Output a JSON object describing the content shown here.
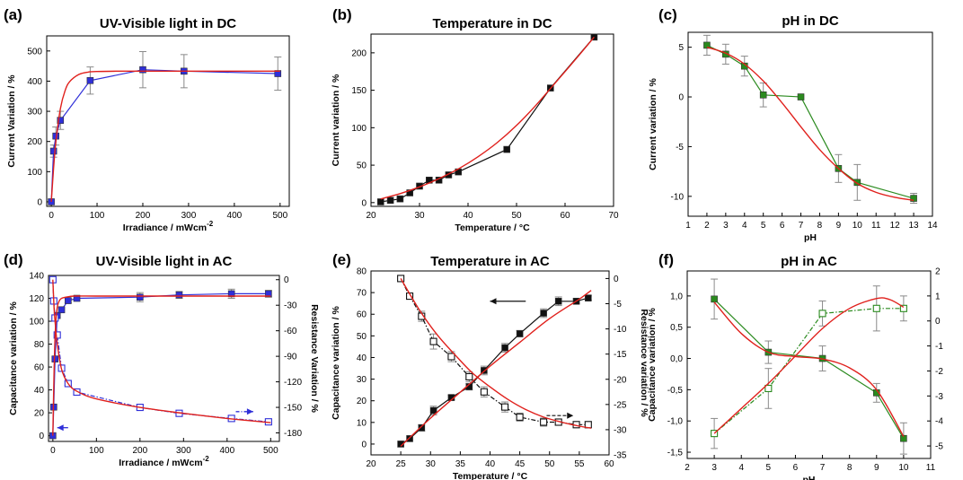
{
  "figure": {
    "colors": {
      "fit": "#e0201c",
      "blue": "#2f2fd8",
      "black": "#111111",
      "green": "#2a8a1e",
      "err": "#8a8a8a"
    }
  },
  "chart_data": [
    {
      "id": "a",
      "letter": "(a)",
      "type": "line",
      "title": "UV-Visible light in DC",
      "xlabel": "Irradiance / mWcm",
      "xlabel_sup": "-2",
      "ylabel": "Current Variation / %",
      "xlim": [
        -10,
        520
      ],
      "ylim": [
        -15,
        550
      ],
      "xticks": [
        0,
        100,
        200,
        300,
        400,
        500
      ],
      "yticks": [
        0,
        100,
        200,
        300,
        400,
        500
      ],
      "series": [
        {
          "color": "blue",
          "marker": "square-filled",
          "mode": "polyline",
          "x": [
            0,
            5,
            10,
            20,
            85,
            200,
            290,
            495
          ],
          "y": [
            0,
            168,
            218,
            270,
            402,
            438,
            433,
            425
          ],
          "err": [
            0,
            20,
            30,
            30,
            45,
            60,
            55,
            55
          ]
        },
        {
          "color": "fit",
          "mode": "curve",
          "x": [
            0,
            5,
            10,
            20,
            30,
            40,
            60,
            80,
            100,
            150,
            200,
            300,
            500
          ],
          "y": [
            0,
            110,
            200,
            310,
            368,
            398,
            422,
            430,
            432,
            433,
            433,
            433,
            433
          ]
        }
      ]
    },
    {
      "id": "b",
      "letter": "(b)",
      "type": "line",
      "title": "Temperature in DC",
      "xlabel": "Temperature / °C",
      "ylabel": "Current variation / %",
      "xlim": [
        20,
        70
      ],
      "ylim": [
        -5,
        225
      ],
      "xticks": [
        20,
        30,
        40,
        50,
        60,
        70
      ],
      "yticks": [
        0,
        50,
        100,
        150,
        200
      ],
      "series": [
        {
          "color": "black",
          "marker": "square-filled",
          "mode": "polyline",
          "x": [
            22,
            24,
            26,
            28,
            30,
            32,
            34,
            36,
            38,
            48,
            57,
            66
          ],
          "y": [
            1,
            3,
            5,
            13,
            22,
            30,
            30,
            37,
            41,
            71,
            153,
            221
          ],
          "err": [
            0,
            0,
            0,
            0,
            0,
            0,
            0,
            0,
            0,
            0,
            0,
            0
          ]
        },
        {
          "color": "fit",
          "mode": "curve",
          "x": [
            22,
            26,
            30,
            34,
            38,
            42,
            46,
            50,
            54,
            58,
            62,
            66
          ],
          "y": [
            5,
            12,
            21,
            32,
            45,
            61,
            80,
            103,
            130,
            160,
            190,
            221
          ]
        }
      ]
    },
    {
      "id": "c",
      "letter": "(c)",
      "type": "line",
      "title": "pH in DC",
      "xlabel": "pH",
      "ylabel": "Current variation / %",
      "xlim": [
        1,
        14
      ],
      "ylim": [
        -12,
        6.5
      ],
      "xticks": [
        1,
        2,
        3,
        4,
        5,
        6,
        7,
        8,
        9,
        10,
        11,
        12,
        13,
        14
      ],
      "yticks": [
        -10,
        -5,
        0,
        5
      ],
      "series": [
        {
          "color": "green",
          "marker": "square-filled",
          "mode": "polyline",
          "x": [
            2,
            3,
            4,
            5,
            7,
            9,
            10,
            13
          ],
          "y": [
            5.2,
            4.3,
            3.1,
            0.2,
            0.0,
            -7.2,
            -8.6,
            -10.2
          ],
          "err": [
            1.0,
            1.0,
            1.0,
            1.2,
            0,
            1.4,
            1.8,
            0.5
          ]
        },
        {
          "color": "fit",
          "mode": "curve",
          "x": [
            2,
            3,
            4,
            5,
            6,
            7,
            8,
            9,
            10,
            11,
            12,
            13
          ],
          "y": [
            5.0,
            4.4,
            3.3,
            1.6,
            -0.6,
            -3.0,
            -5.3,
            -7.2,
            -8.7,
            -9.6,
            -10.1,
            -10.4
          ]
        }
      ]
    },
    {
      "id": "d",
      "letter": "(d)",
      "type": "line",
      "title": "UV-Visible light in AC",
      "xlabel": "Irradiance / mWcm",
      "xlabel_sup": "-2",
      "ylabel": "Capacitance variation / %",
      "y2label": "Resistance Variation / %",
      "xlim": [
        -10,
        520
      ],
      "ylim": [
        -5,
        140
      ],
      "y2lim": [
        -190,
        5
      ],
      "xticks": [
        0,
        100,
        200,
        300,
        400,
        500
      ],
      "yticks": [
        0,
        20,
        40,
        60,
        80,
        100,
        120,
        140
      ],
      "y2ticks": [
        0,
        -30,
        -60,
        -90,
        -120,
        -150,
        -180
      ],
      "series": [
        {
          "color": "blue",
          "marker": "square-filled",
          "mode": "polyline",
          "axis": "left",
          "x": [
            0,
            2,
            5,
            10,
            20,
            35,
            55,
            200,
            290,
            410,
            495
          ],
          "y": [
            0,
            25,
            67,
            105,
            110,
            118,
            120,
            121,
            123,
            124,
            124
          ],
          "err": [
            0,
            0,
            0,
            0,
            0,
            2,
            2,
            4,
            3,
            4,
            3
          ]
        },
        {
          "color": "blue",
          "marker": "square-open",
          "mode": "dashdot",
          "axis": "right",
          "x": [
            0,
            2,
            5,
            10,
            20,
            35,
            55,
            200,
            290,
            410,
            495
          ],
          "y": [
            0,
            -25,
            -45,
            -65,
            -104,
            -122,
            -132,
            -150,
            -157,
            -163,
            -167
          ],
          "err": [
            0,
            0,
            0,
            0,
            0,
            2,
            2,
            3,
            2,
            3,
            2
          ]
        },
        {
          "color": "fit",
          "mode": "curve",
          "axis": "left",
          "x": [
            0,
            3,
            6,
            10,
            15,
            20,
            30,
            50,
            100,
            200,
            300,
            500
          ],
          "y": [
            0,
            60,
            95,
            112,
            118,
            120,
            121,
            122,
            122,
            122,
            122,
            122
          ]
        },
        {
          "color": "fit",
          "mode": "curve",
          "axis": "right",
          "x": [
            0,
            3,
            6,
            10,
            20,
            35,
            55,
            100,
            200,
            300,
            400,
            500
          ],
          "y": [
            0,
            -35,
            -55,
            -75,
            -105,
            -122,
            -131,
            -140,
            -150,
            -157,
            -163,
            -168
          ]
        }
      ]
    },
    {
      "id": "e",
      "letter": "(e)",
      "type": "line",
      "title": "Temperature in AC",
      "xlabel": "Temperature / °C",
      "ylabel": "Capacitance variation / %",
      "y2label": "Resistance variation / %",
      "xlim": [
        20,
        60
      ],
      "ylim": [
        -5,
        80
      ],
      "y2lim": [
        -35,
        1.5
      ],
      "xticks": [
        20,
        25,
        30,
        35,
        40,
        45,
        50,
        55,
        60
      ],
      "yticks": [
        0,
        10,
        20,
        30,
        40,
        50,
        60,
        70,
        80
      ],
      "y2ticks": [
        0,
        -5,
        -10,
        -15,
        -20,
        -25,
        -30,
        -35
      ],
      "series": [
        {
          "color": "black",
          "marker": "square-filled",
          "mode": "polyline",
          "axis": "left",
          "x": [
            25,
            26.5,
            28.5,
            30.5,
            33.5,
            36.5,
            39,
            42.5,
            45,
            49,
            51.5,
            54.5,
            56.5
          ],
          "y": [
            0,
            2.5,
            7.5,
            15.5,
            21.5,
            26.5,
            34,
            44.5,
            51,
            60.5,
            66,
            66,
            67.5
          ],
          "err": [
            0,
            0,
            1.5,
            2,
            1,
            1.5,
            2,
            2,
            1.5,
            2,
            2,
            1,
            1
          ]
        },
        {
          "color": "black",
          "marker": "square-open",
          "mode": "dashdot",
          "axis": "right",
          "x": [
            25,
            26.5,
            28.5,
            30.5,
            33.5,
            36.5,
            39,
            42.5,
            45,
            49,
            51.5,
            54.5,
            56.5
          ],
          "y": [
            0,
            -3.5,
            -7.5,
            -12.5,
            -15.5,
            -19.5,
            -22.5,
            -25.5,
            -27.5,
            -28.5,
            -28.5,
            -29,
            -29
          ],
          "err": [
            0,
            0.5,
            1,
            1.5,
            1,
            1,
            1,
            1,
            0.8,
            0.8,
            0.6,
            0.6,
            0.6
          ]
        },
        {
          "color": "fit",
          "mode": "curve",
          "axis": "left",
          "x": [
            25,
            30,
            35,
            40,
            45,
            50,
            55,
            57
          ],
          "y": [
            -1,
            12,
            24,
            36,
            47,
            58,
            67,
            71
          ]
        },
        {
          "color": "fit",
          "mode": "curve",
          "axis": "right",
          "x": [
            25,
            28,
            31,
            34,
            37,
            40,
            43,
            46,
            49,
            52,
            55,
            57
          ],
          "y": [
            0,
            -6,
            -11,
            -15,
            -18.7,
            -21.5,
            -24,
            -26,
            -27.5,
            -28.5,
            -29.3,
            -29.7
          ]
        }
      ],
      "arrows": [
        {
          "x1": 46,
          "y1": 66,
          "x2": 40,
          "y2": 66,
          "axis": "left",
          "color": "black"
        },
        {
          "x1": 49.5,
          "y1": -27.2,
          "x2": 54,
          "y2": -27.2,
          "axis": "right",
          "color": "black",
          "dashed": true
        }
      ]
    },
    {
      "id": "f",
      "letter": "(f)",
      "type": "line",
      "title": "pH in AC",
      "xlabel": "pH",
      "ylabel": "Capacitance variation / %",
      "y2label": "Resistance variation / %",
      "xlim": [
        2,
        11
      ],
      "ylim": [
        -1.6,
        1.4
      ],
      "y2lim": [
        -5.5,
        2
      ],
      "xticks": [
        2,
        3,
        4,
        5,
        6,
        7,
        8,
        9,
        10,
        11
      ],
      "yticks": [
        -1.5,
        -1.0,
        -0.5,
        0.0,
        0.5,
        1.0
      ],
      "ytick_labels": [
        "-1,5",
        "-1,0",
        "-0,5",
        "0,0",
        "0,5",
        "1,0"
      ],
      "y2ticks": [
        -5,
        -4,
        -3,
        -2,
        -1,
        0,
        1,
        2
      ],
      "series": [
        {
          "color": "green",
          "marker": "square-filled",
          "mode": "polyline",
          "axis": "left",
          "x": [
            3,
            5,
            7,
            9,
            10
          ],
          "y": [
            0.95,
            0.1,
            0.0,
            -0.55,
            -1.28
          ],
          "err": [
            0.32,
            0.18,
            0.2,
            0.15,
            0.25
          ]
        },
        {
          "color": "green",
          "marker": "square-open",
          "mode": "dashdot",
          "axis": "right",
          "x": [
            3,
            5,
            7,
            9,
            10
          ],
          "y": [
            -4.5,
            -2.7,
            0.3,
            0.5,
            0.5
          ],
          "err": [
            0.6,
            0.8,
            0.5,
            0.9,
            0.5
          ]
        },
        {
          "color": "fit",
          "mode": "curve",
          "axis": "left",
          "x": [
            3,
            4,
            5,
            6,
            7,
            8,
            9,
            10
          ],
          "y": [
            0.9,
            0.4,
            0.1,
            0.03,
            -0.01,
            -0.15,
            -0.5,
            -1.25
          ]
        },
        {
          "color": "fit",
          "mode": "curve",
          "axis": "right",
          "x": [
            3,
            4,
            5,
            6,
            7,
            8,
            9,
            9.5,
            10
          ],
          "y": [
            -4.5,
            -3.5,
            -2.5,
            -1.4,
            -0.3,
            0.5,
            0.9,
            0.85,
            0.55
          ]
        }
      ]
    }
  ]
}
